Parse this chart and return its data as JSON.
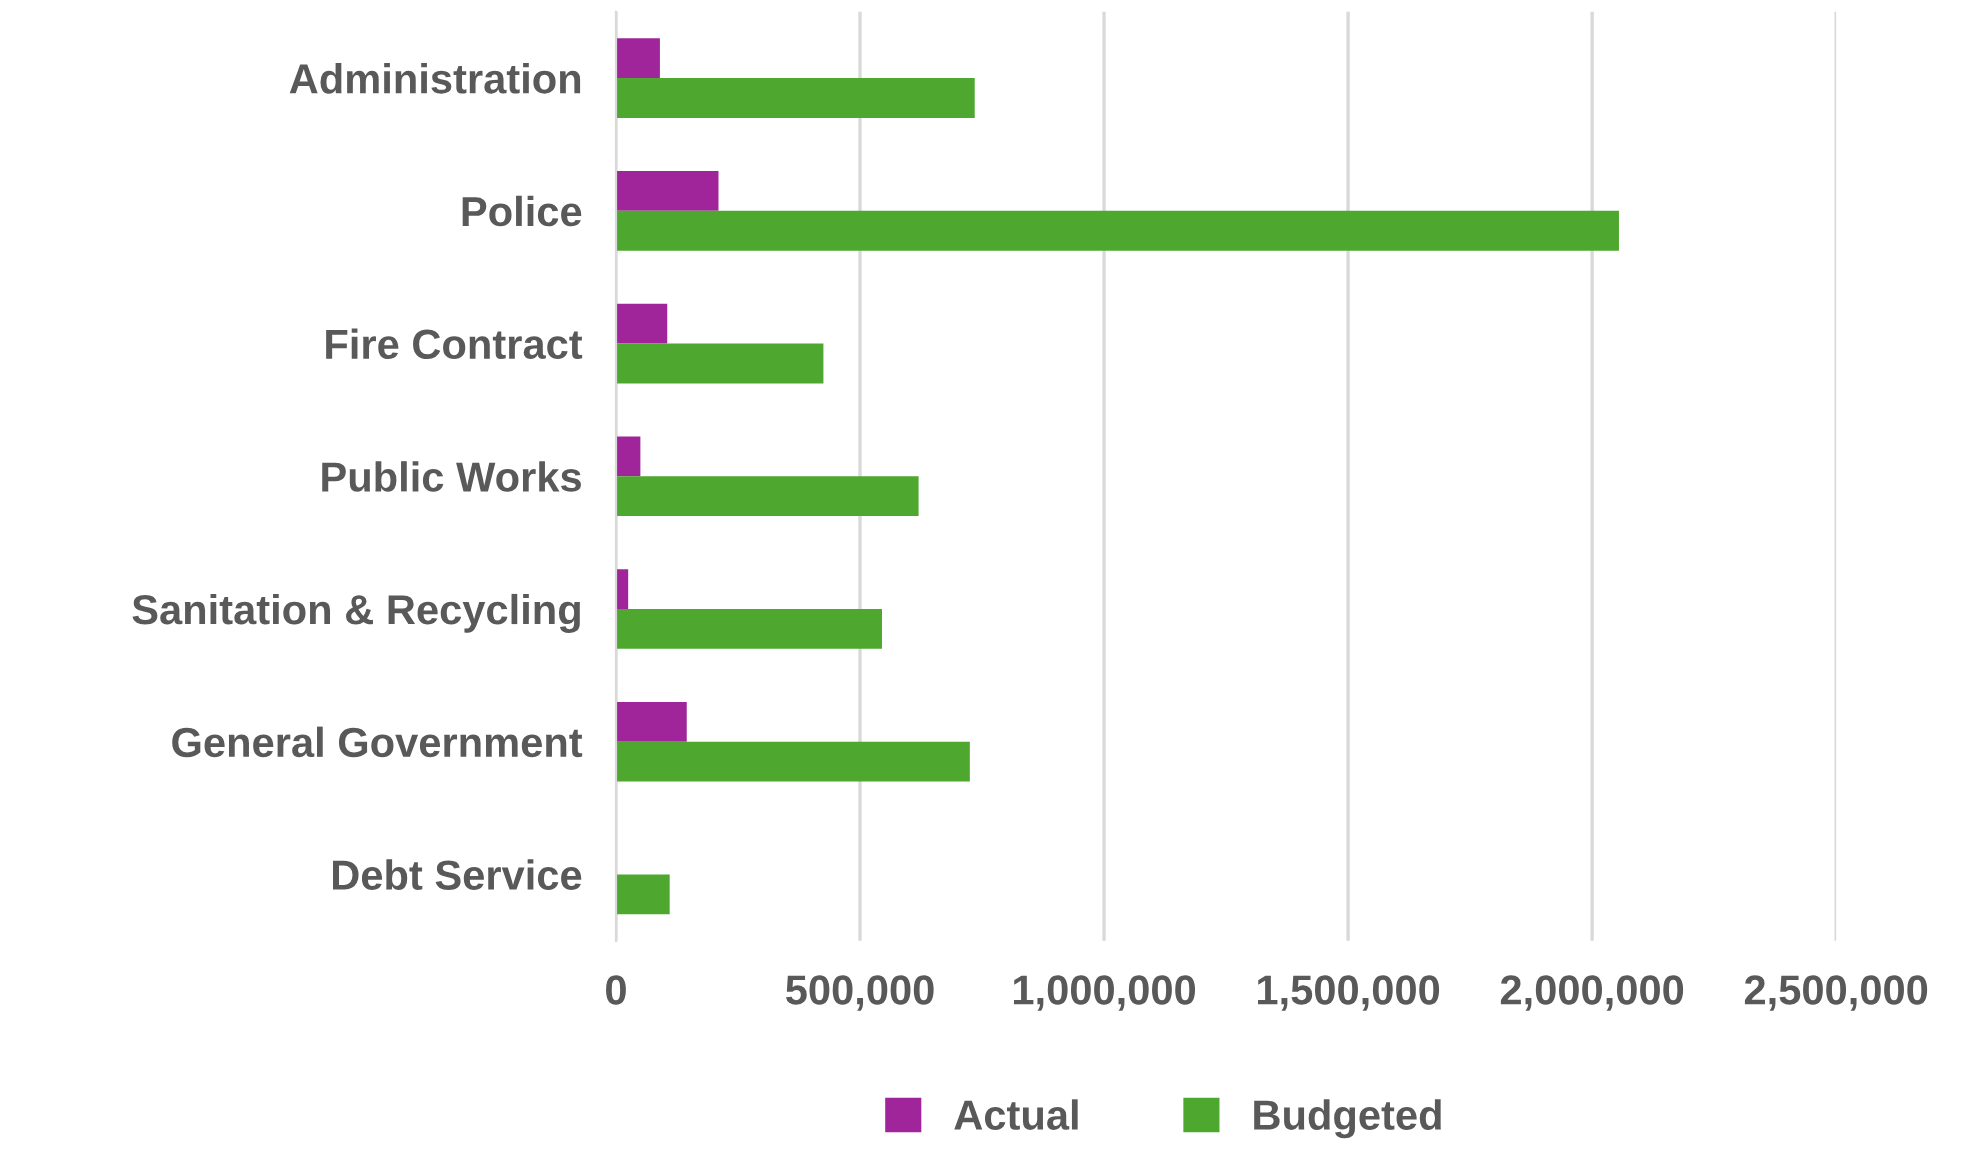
{
  "chart_data": {
    "type": "bar",
    "orientation": "horizontal",
    "categories": [
      "Administration",
      "Police",
      "Fire Contract",
      "Public Works",
      "Sanitation & Recycling",
      "General Government",
      "Debt Service"
    ],
    "series": [
      {
        "name": "Actual",
        "color": "#a0259a",
        "values": [
          90000,
          210000,
          105000,
          50000,
          25000,
          145000,
          null
        ]
      },
      {
        "name": "Budgeted",
        "color": "#4ea72e",
        "values": [
          735000,
          2055000,
          425000,
          620000,
          545000,
          725000,
          110000
        ]
      }
    ],
    "xlim": [
      0,
      2500000
    ],
    "xticks": [
      0,
      {
        "value": 500000,
        "label": "500,000"
      },
      {
        "value": 1000000,
        "label": "1,000,000"
      },
      {
        "value": 1500000,
        "label": "1,500,000"
      },
      {
        "value": 2000000,
        "label": "2,000,000"
      },
      {
        "value": 2500000,
        "label": "2,500,000"
      }
    ],
    "grid": "x",
    "legend": "bottom"
  }
}
